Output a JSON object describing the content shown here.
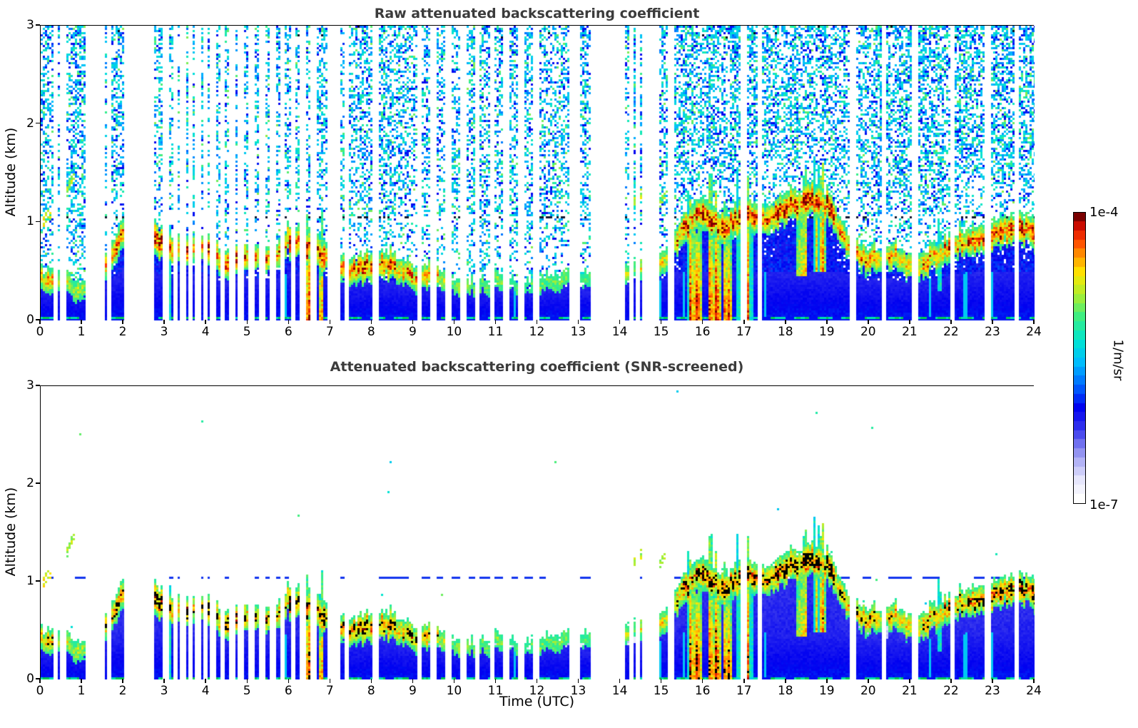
{
  "panels": [
    {
      "title": "Raw attenuated backscattering coefficient",
      "ylabel": "Altitude (km)",
      "mode": "raw"
    },
    {
      "title": "Attenuated backscattering coefficient (SNR-screened)",
      "ylabel": "Altitude (km)",
      "mode": "screened"
    }
  ],
  "xlabel": "Time (UTC)",
  "colorbar": {
    "top_label": "1e-4",
    "bottom_label": "1e-7",
    "unit_label": "1/m/sr",
    "stops": [
      [
        0,
        "#FFFFFF"
      ],
      [
        0.06,
        "#E9E9FC"
      ],
      [
        0.12,
        "#BCBCF7"
      ],
      [
        0.18,
        "#8080EF"
      ],
      [
        0.24,
        "#3A3AEE"
      ],
      [
        0.32,
        "#0000F0"
      ],
      [
        0.4,
        "#0066FF"
      ],
      [
        0.48,
        "#00BBFF"
      ],
      [
        0.56,
        "#00E5D2"
      ],
      [
        0.64,
        "#38EE85"
      ],
      [
        0.72,
        "#A9EE32"
      ],
      [
        0.8,
        "#FFE800"
      ],
      [
        0.86,
        "#FF9900"
      ],
      [
        0.92,
        "#FF3B00"
      ],
      [
        0.97,
        "#C80A00"
      ],
      [
        1,
        "#7A0000"
      ]
    ]
  },
  "chart_data": {
    "type": "heatmap",
    "xlabel": "Time (UTC)",
    "ylabel": "Altitude (km)",
    "x_range": [
      0,
      24
    ],
    "y_range": [
      0,
      3
    ],
    "x_ticks": [
      0,
      1,
      2,
      3,
      4,
      5,
      6,
      7,
      8,
      9,
      10,
      11,
      12,
      13,
      14,
      15,
      16,
      17,
      18,
      19,
      20,
      21,
      22,
      23,
      24
    ],
    "y_ticks": [
      0,
      1,
      2,
      3
    ],
    "value_scale": "log",
    "value_range": [
      "1e-7",
      "1e-4"
    ],
    "value_unit": "1/m/sr",
    "time_step_h": 0.5,
    "layer_top_km": [
      0.55,
      0.5,
      0.45,
      0.65,
      1.05,
      1.15,
      0.9,
      0.85,
      0.9,
      0.75,
      0.8,
      0.75,
      1.0,
      0.85,
      0.7,
      0.65,
      0.7,
      0.7,
      0.65,
      0.6,
      0.55,
      0.55,
      0.55,
      0.5,
      0.55,
      0.55,
      0.55,
      0.55,
      0.6,
      0.7,
      0.8,
      1.1,
      1.25,
      1.15,
      1.25,
      1.15,
      1.35,
      1.4,
      1.3,
      0.9,
      0.75,
      0.8,
      0.7,
      0.8,
      0.9,
      1.0,
      1.05,
      1.1,
      1.05
    ],
    "layer_intensity": [
      0.55,
      0.5,
      0.35,
      0.6,
      0.85,
      0.9,
      0.8,
      0.8,
      0.8,
      0.7,
      0.75,
      0.7,
      0.85,
      0.9,
      0.7,
      0.65,
      0.75,
      0.7,
      0.6,
      0.5,
      0.3,
      0.25,
      0.3,
      0.2,
      0.25,
      0.25,
      0.2,
      0.2,
      0.3,
      0.45,
      0.5,
      0.8,
      0.9,
      0.95,
      0.8,
      0.75,
      0.85,
      0.95,
      0.85,
      0.6,
      0.65,
      0.6,
      0.55,
      0.65,
      0.7,
      0.7,
      0.8,
      0.85,
      0.8
    ],
    "gaps_h": [
      [
        0.33,
        0.03
      ],
      [
        0.52,
        0.03
      ],
      [
        1.12,
        0.04
      ],
      [
        1.28,
        0.03
      ],
      [
        1.46,
        0.04
      ],
      [
        1.63,
        0.03
      ],
      [
        2.08,
        0.04
      ],
      [
        2.22,
        0.03
      ],
      [
        2.33,
        0.03
      ],
      [
        2.46,
        0.09
      ],
      [
        2.63,
        0.03
      ],
      [
        3.0,
        0.03
      ],
      [
        3.22,
        0.04
      ],
      [
        3.42,
        0.03
      ],
      [
        3.59,
        0.04
      ],
      [
        3.76,
        0.03
      ],
      [
        3.95,
        0.04
      ],
      [
        4.13,
        0.03
      ],
      [
        4.36,
        0.04
      ],
      [
        4.6,
        0.03
      ],
      [
        4.81,
        0.03
      ],
      [
        5.06,
        0.04
      ],
      [
        5.31,
        0.03
      ],
      [
        5.56,
        0.03
      ],
      [
        5.81,
        0.04
      ],
      [
        6.06,
        0.03
      ],
      [
        6.31,
        0.03
      ],
      [
        6.56,
        0.03
      ],
      [
        6.95,
        0.04
      ],
      [
        7.12,
        0.03
      ],
      [
        7.36,
        0.03
      ],
      [
        8.06,
        0.03
      ],
      [
        9.12,
        0.03
      ],
      [
        9.46,
        0.03
      ],
      [
        9.81,
        0.03
      ],
      [
        10.16,
        0.03
      ],
      [
        10.51,
        0.03
      ],
      [
        10.86,
        0.03
      ],
      [
        11.21,
        0.03
      ],
      [
        11.56,
        0.03
      ],
      [
        11.91,
        0.03
      ],
      [
        12.86,
        0.15
      ],
      [
        13.32,
        0.03
      ],
      [
        13.46,
        0.03
      ],
      [
        13.58,
        0.03
      ],
      [
        13.72,
        0.03
      ],
      [
        13.86,
        0.03
      ],
      [
        13.98,
        0.03
      ],
      [
        14.22,
        0.03
      ],
      [
        14.37,
        0.03
      ],
      [
        14.52,
        0.03
      ],
      [
        14.67,
        0.03
      ],
      [
        14.82,
        0.03
      ],
      [
        15.16,
        0.03
      ],
      [
        16.92,
        0.04
      ],
      [
        17.32,
        0.03
      ],
      [
        19.56,
        0.03
      ],
      [
        20.32,
        0.03
      ],
      [
        21.06,
        0.03
      ],
      [
        21.96,
        0.03
      ],
      [
        22.82,
        0.03
      ],
      [
        23.52,
        0.03
      ]
    ],
    "plumes": [
      {
        "t": 3.08,
        "w": 0.12,
        "top": 0.92,
        "bot": 0,
        "hot": 0.9
      },
      {
        "t": 6.45,
        "w": 0.26,
        "top": 1.05,
        "bot": 0,
        "hot": 0.8
      },
      {
        "t": 6.74,
        "w": 0.12,
        "top": 0.92,
        "bot": 0,
        "hot": 0.75
      },
      {
        "t": 15.78,
        "w": 0.38,
        "top": 1.15,
        "bot": 0,
        "hot": 0.95
      },
      {
        "t": 16.28,
        "w": 0.3,
        "top": 1.2,
        "bot": 0,
        "hot": 0.9
      },
      {
        "t": 16.58,
        "w": 0.16,
        "top": 1.1,
        "bot": 0,
        "hot": 0.85
      },
      {
        "t": 16.82,
        "w": 0.1,
        "top": 1.25,
        "bot": 0,
        "hot": 0.35
      },
      {
        "t": 17.12,
        "w": 0.18,
        "top": 1.3,
        "bot": 0,
        "hot": 0.45
      },
      {
        "t": 18.38,
        "w": 0.26,
        "top": 1.38,
        "bot": 0.45,
        "hot": 0.8
      },
      {
        "t": 18.82,
        "w": 0.3,
        "top": 1.42,
        "bot": 0.5,
        "hot": 0.85
      },
      {
        "t": 2.56,
        "w": 0.08,
        "top": 0.9,
        "bot": 0,
        "hot": 0.4
      },
      {
        "t": 4.4,
        "w": 0.06,
        "top": 0.8,
        "bot": 0,
        "hot": 0.45
      },
      {
        "t": 7.16,
        "w": 0.05,
        "top": 0.72,
        "bot": 0,
        "hot": 0.5
      },
      {
        "t": 21.7,
        "w": 0.08,
        "top": 0.95,
        "bot": 0.3,
        "hot": 0.6
      }
    ],
    "elevated_streaks": [
      {
        "t0": 14.25,
        "t1": 15.1,
        "z": 1.18,
        "amp": 0.55
      },
      {
        "t0": 0.05,
        "t1": 0.22,
        "z": 0.95,
        "amp": 0.75
      },
      {
        "t0": 0.55,
        "t1": 0.8,
        "z": 1.35,
        "amp": 0.5
      }
    ],
    "dotted_line_km": 1.05,
    "surface_line_km": 0.02
  }
}
